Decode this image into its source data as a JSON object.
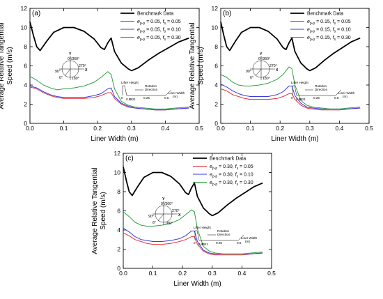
{
  "chart_data": [
    {
      "type": "line",
      "panel_label": "(a)",
      "xlabel": "Liner Width (m)",
      "ylabel_lines": [
        "Average Relative Tangential",
        "Speed (m/s)"
      ],
      "xlim": [
        0.0,
        0.5
      ],
      "ylim": [
        0,
        12
      ],
      "xticks": [
        "0.0",
        "0.1",
        "0.2",
        "0.3",
        "0.4",
        "0.5"
      ],
      "yticks": [
        "0",
        "2",
        "4",
        "6",
        "8",
        "10",
        "12"
      ],
      "legend": [
        "Benchmark Data",
        "e_p-p = 0.05, f_s = 0.05",
        "e_p-p = 0.05, f_s = 0.10",
        "e_p-p = 0.05, f_s = 0.30"
      ],
      "series": [
        {
          "name": "Benchmark Data",
          "color": "#000000",
          "x": [
            0.0,
            0.01,
            0.02,
            0.03,
            0.05,
            0.07,
            0.1,
            0.13,
            0.16,
            0.19,
            0.21,
            0.22,
            0.23,
            0.24,
            0.25,
            0.27,
            0.29,
            0.3,
            0.32,
            0.35,
            0.38,
            0.41,
            0.44,
            0.47
          ],
          "y": [
            10.6,
            9.2,
            8.0,
            7.6,
            8.6,
            9.5,
            10.0,
            10.0,
            9.6,
            8.8,
            7.9,
            7.7,
            8.4,
            8.9,
            7.5,
            6.3,
            5.7,
            5.5,
            5.8,
            6.6,
            7.3,
            7.9,
            8.5,
            8.9
          ]
        },
        {
          "name": "e_p-p = 0.05, f_s = 0.05",
          "color": "#e8303a",
          "x": [
            0.0,
            0.02,
            0.04,
            0.06,
            0.08,
            0.1,
            0.13,
            0.16,
            0.19,
            0.21,
            0.23,
            0.24,
            0.25,
            0.27,
            0.29,
            0.31,
            0.34,
            0.37,
            0.4,
            0.43,
            0.47
          ],
          "y": [
            3.8,
            3.6,
            3.2,
            2.9,
            2.7,
            2.6,
            2.6,
            2.6,
            2.7,
            2.9,
            3.2,
            3.2,
            2.6,
            2.0,
            1.7,
            1.6,
            1.5,
            1.4,
            1.4,
            1.5,
            1.6
          ]
        },
        {
          "name": "e_p-p = 0.05, f_s = 0.10",
          "color": "#3a3ae0",
          "x": [
            0.0,
            0.02,
            0.04,
            0.06,
            0.08,
            0.1,
            0.13,
            0.16,
            0.19,
            0.21,
            0.23,
            0.24,
            0.25,
            0.27,
            0.29,
            0.31,
            0.34,
            0.37,
            0.4,
            0.43,
            0.47
          ],
          "y": [
            3.9,
            3.7,
            3.3,
            3.0,
            2.8,
            2.7,
            2.7,
            2.7,
            2.9,
            3.1,
            3.6,
            3.7,
            2.8,
            2.1,
            1.8,
            1.6,
            1.5,
            1.4,
            1.4,
            1.5,
            1.6
          ]
        },
        {
          "name": "e_p-p = 0.05, f_s = 0.30",
          "color": "#2ea043",
          "x": [
            0.0,
            0.02,
            0.04,
            0.06,
            0.08,
            0.1,
            0.13,
            0.16,
            0.19,
            0.21,
            0.23,
            0.24,
            0.25,
            0.27,
            0.29,
            0.31,
            0.34,
            0.37,
            0.4,
            0.43,
            0.47
          ],
          "y": [
            4.9,
            4.5,
            4.0,
            3.7,
            3.5,
            3.6,
            3.7,
            3.9,
            4.3,
            4.8,
            5.4,
            5.1,
            3.6,
            2.3,
            1.9,
            1.7,
            1.6,
            1.5,
            1.5,
            1.6,
            1.7
          ]
        }
      ]
    },
    {
      "type": "line",
      "panel_label": "(b)",
      "xlabel": "Liner Width (m)",
      "ylabel_lines": [
        "Average Relative Tangential",
        "Speed (m/s)"
      ],
      "xlim": [
        0.0,
        0.5
      ],
      "ylim": [
        0,
        12
      ],
      "xticks": [
        "0.0",
        "0.1",
        "0.2",
        "0.3",
        "0.4",
        "0.5"
      ],
      "yticks": [
        "0",
        "2",
        "4",
        "6",
        "8",
        "10",
        "12"
      ],
      "legend": [
        "Benchmark Data",
        "e_p-p = 0.15, f_s = 0.05",
        "e_p-p = 0.15, f_s = 0.10",
        "e_p-p = 0.15, f_s = 0.30"
      ],
      "series": [
        {
          "name": "Benchmark Data",
          "color": "#000000",
          "x": [
            0.0,
            0.01,
            0.02,
            0.03,
            0.05,
            0.07,
            0.1,
            0.13,
            0.16,
            0.19,
            0.21,
            0.22,
            0.23,
            0.24,
            0.25,
            0.27,
            0.29,
            0.3,
            0.32,
            0.35,
            0.38,
            0.41,
            0.44,
            0.47
          ],
          "y": [
            10.6,
            9.2,
            8.0,
            7.6,
            8.6,
            9.5,
            10.0,
            10.0,
            9.6,
            8.8,
            7.9,
            7.7,
            8.4,
            8.9,
            7.5,
            6.3,
            5.7,
            5.5,
            5.8,
            6.6,
            7.3,
            7.9,
            8.5,
            8.9
          ]
        },
        {
          "name": "e_p-p = 0.15, f_s = 0.05",
          "color": "#e8303a",
          "x": [
            0.0,
            0.02,
            0.04,
            0.06,
            0.08,
            0.1,
            0.13,
            0.16,
            0.19,
            0.21,
            0.23,
            0.24,
            0.25,
            0.27,
            0.29,
            0.31,
            0.34,
            0.37,
            0.4,
            0.43,
            0.47
          ],
          "y": [
            3.6,
            3.4,
            3.0,
            2.8,
            2.6,
            2.5,
            2.5,
            2.5,
            2.6,
            2.8,
            3.1,
            3.1,
            2.5,
            1.9,
            1.6,
            1.5,
            1.4,
            1.4,
            1.4,
            1.5,
            1.6
          ]
        },
        {
          "name": "e_p-p = 0.15, f_s = 0.10",
          "color": "#3a3ae0",
          "x": [
            0.0,
            0.02,
            0.04,
            0.06,
            0.08,
            0.1,
            0.13,
            0.16,
            0.19,
            0.21,
            0.23,
            0.24,
            0.25,
            0.27,
            0.29,
            0.31,
            0.34,
            0.37,
            0.4,
            0.43,
            0.47
          ],
          "y": [
            4.1,
            3.8,
            3.4,
            3.1,
            2.9,
            2.8,
            2.8,
            2.8,
            3.0,
            3.3,
            3.9,
            3.9,
            2.9,
            2.1,
            1.7,
            1.6,
            1.5,
            1.5,
            1.5,
            1.5,
            1.6
          ]
        },
        {
          "name": "e_p-p = 0.15, f_s = 0.30",
          "color": "#2ea043",
          "x": [
            0.0,
            0.02,
            0.04,
            0.06,
            0.08,
            0.1,
            0.13,
            0.16,
            0.19,
            0.21,
            0.23,
            0.24,
            0.25,
            0.27,
            0.29,
            0.31,
            0.34,
            0.37,
            0.4,
            0.43,
            0.47
          ],
          "y": [
            5.1,
            4.8,
            4.3,
            4.0,
            3.9,
            3.9,
            4.0,
            4.2,
            4.6,
            5.1,
            5.9,
            5.7,
            4.0,
            2.4,
            1.9,
            1.7,
            1.6,
            1.5,
            1.5,
            1.6,
            1.7
          ]
        }
      ]
    },
    {
      "type": "line",
      "panel_label": "(c)",
      "xlabel": "Liner Width (m)",
      "ylabel_lines": [
        "Average Relative Tangential",
        "Speed (m/s)"
      ],
      "xlim": [
        0.0,
        0.5
      ],
      "ylim": [
        0,
        12
      ],
      "xticks": [
        "0.0",
        "0.1",
        "0.2",
        "0.3",
        "0.4",
        "0.5"
      ],
      "yticks": [
        "0",
        "2",
        "4",
        "6",
        "8",
        "10",
        "12"
      ],
      "legend": [
        "Benchmark Data",
        "e_p-p = 0.30, f_s = 0.05",
        "e_p-p = 0.30, f_s = 0.10",
        "e_p-p = 0.30, f_s = 0.30"
      ],
      "series": [
        {
          "name": "Benchmark Data",
          "color": "#000000",
          "x": [
            0.0,
            0.01,
            0.02,
            0.03,
            0.05,
            0.07,
            0.1,
            0.13,
            0.16,
            0.19,
            0.21,
            0.22,
            0.23,
            0.24,
            0.25,
            0.27,
            0.29,
            0.3,
            0.32,
            0.35,
            0.38,
            0.41,
            0.44,
            0.47
          ],
          "y": [
            10.6,
            9.2,
            8.0,
            7.6,
            8.6,
            9.5,
            10.0,
            10.0,
            9.6,
            8.8,
            7.9,
            7.7,
            8.4,
            8.9,
            7.5,
            6.3,
            5.7,
            5.5,
            5.8,
            6.6,
            7.3,
            7.9,
            8.5,
            8.9
          ]
        },
        {
          "name": "e_p-p = 0.30, f_s = 0.05",
          "color": "#e8303a",
          "x": [
            0.0,
            0.02,
            0.04,
            0.06,
            0.08,
            0.1,
            0.13,
            0.16,
            0.19,
            0.21,
            0.23,
            0.24,
            0.25,
            0.27,
            0.29,
            0.31,
            0.34,
            0.37,
            0.4,
            0.43,
            0.47
          ],
          "y": [
            3.7,
            3.4,
            3.0,
            2.8,
            2.6,
            2.5,
            2.5,
            2.6,
            2.8,
            3.0,
            3.3,
            3.3,
            2.5,
            1.8,
            1.5,
            1.4,
            1.4,
            1.4,
            1.4,
            1.5,
            1.6
          ]
        },
        {
          "name": "e_p-p = 0.30, f_s = 0.10",
          "color": "#3a3ae0",
          "x": [
            0.0,
            0.02,
            0.04,
            0.06,
            0.08,
            0.1,
            0.13,
            0.16,
            0.19,
            0.21,
            0.23,
            0.24,
            0.25,
            0.27,
            0.29,
            0.31,
            0.34,
            0.37,
            0.4,
            0.43,
            0.47
          ],
          "y": [
            4.2,
            3.8,
            3.3,
            3.0,
            2.9,
            2.8,
            2.8,
            2.9,
            3.1,
            3.4,
            3.9,
            3.9,
            2.8,
            1.9,
            1.6,
            1.5,
            1.5,
            1.5,
            1.5,
            1.5,
            1.6
          ]
        },
        {
          "name": "e_p-p = 0.30, f_s = 0.30",
          "color": "#2ea043",
          "x": [
            0.0,
            0.02,
            0.04,
            0.06,
            0.08,
            0.1,
            0.13,
            0.16,
            0.19,
            0.21,
            0.23,
            0.24,
            0.25,
            0.27,
            0.29,
            0.31,
            0.34,
            0.37,
            0.4,
            0.43,
            0.47
          ],
          "y": [
            5.9,
            5.4,
            4.8,
            4.5,
            4.4,
            4.4,
            4.5,
            4.7,
            5.1,
            5.6,
            6.1,
            5.9,
            4.1,
            2.3,
            1.8,
            1.6,
            1.5,
            1.5,
            1.5,
            1.6,
            1.7
          ]
        }
      ]
    }
  ],
  "inset": {
    "compass": {
      "top": "0°/360°",
      "right": "270°",
      "left": "90°",
      "bottom": "180°",
      "lower_left": "6°"
    },
    "axis_y": "Y",
    "axis_x": "X",
    "lifter_height": "Lifter Height",
    "rotation_direction": [
      "Rotation",
      "Direction"
    ],
    "liner_width": [
      "Liner Width",
      "(m)"
    ],
    "scale": [
      "0",
      "0.04",
      "0.21",
      "0.25",
      "0.5"
    ]
  },
  "colors": {
    "benchmark": "#000000",
    "fs_005": "#e8303a",
    "fs_010": "#3a3ae0",
    "fs_030": "#2ea043"
  }
}
